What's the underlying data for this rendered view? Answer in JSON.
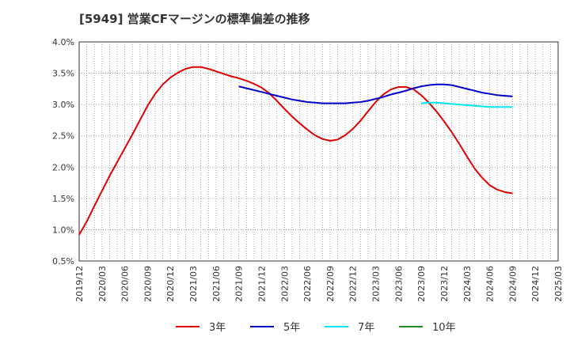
{
  "chart_data": {
    "type": "line",
    "title": "[5949]  営業CFマージンの標準偏差の推移",
    "x_categories": [
      "2019/12",
      "2020/03",
      "2020/06",
      "2020/09",
      "2020/12",
      "2021/03",
      "2021/06",
      "2021/09",
      "2021/12",
      "2022/03",
      "2022/06",
      "2022/09",
      "2022/12",
      "2023/03",
      "2023/06",
      "2023/09",
      "2023/12",
      "2024/03",
      "2024/06",
      "2024/09",
      "2024/12",
      "2025/03"
    ],
    "y_ticks": [
      "0.5%",
      "1.0%",
      "1.5%",
      "2.0%",
      "2.5%",
      "3.0%",
      "3.5%",
      "4.0%"
    ],
    "ylim": [
      0.5,
      4.0
    ],
    "grid": true,
    "legend_position": "bottom",
    "series": [
      {
        "name": "3年",
        "color": "#e00000",
        "x": [
          "2019/12",
          "2020/01",
          "2020/02",
          "2020/03",
          "2020/04",
          "2020/05",
          "2020/06",
          "2020/07",
          "2020/08",
          "2020/09",
          "2020/10",
          "2020/11",
          "2020/12",
          "2021/01",
          "2021/02",
          "2021/03",
          "2021/04",
          "2021/05",
          "2021/06",
          "2021/07",
          "2021/08",
          "2021/09",
          "2021/10",
          "2021/11",
          "2021/12",
          "2022/01",
          "2022/02",
          "2022/03",
          "2022/04",
          "2022/05",
          "2022/06",
          "2022/07",
          "2022/08",
          "2022/09",
          "2022/10",
          "2022/11",
          "2022/12",
          "2023/01",
          "2023/02",
          "2023/03",
          "2023/04",
          "2023/05",
          "2023/06",
          "2023/07",
          "2023/08",
          "2023/09",
          "2023/10",
          "2023/11",
          "2023/12",
          "2024/01",
          "2024/02",
          "2024/03",
          "2024/04",
          "2024/05",
          "2024/06",
          "2024/07",
          "2024/08",
          "2024/09"
        ],
        "values": [
          0.92,
          1.13,
          1.38,
          1.62,
          1.86,
          2.08,
          2.3,
          2.52,
          2.75,
          2.98,
          3.17,
          3.32,
          3.43,
          3.51,
          3.57,
          3.6,
          3.6,
          3.57,
          3.53,
          3.49,
          3.45,
          3.42,
          3.38,
          3.33,
          3.27,
          3.18,
          3.06,
          2.93,
          2.81,
          2.7,
          2.6,
          2.51,
          2.45,
          2.42,
          2.44,
          2.51,
          2.61,
          2.74,
          2.89,
          3.04,
          3.16,
          3.24,
          3.28,
          3.28,
          3.24,
          3.15,
          3.03,
          2.89,
          2.73,
          2.56,
          2.37,
          2.17,
          1.98,
          1.83,
          1.71,
          1.64,
          1.6,
          1.58
        ]
      },
      {
        "name": "5年",
        "color": "#0000cc",
        "x": [
          "2021/09",
          "2021/10",
          "2021/11",
          "2021/12",
          "2022/01",
          "2022/02",
          "2022/03",
          "2022/04",
          "2022/05",
          "2022/06",
          "2022/07",
          "2022/08",
          "2022/09",
          "2022/10",
          "2022/11",
          "2022/12",
          "2023/01",
          "2023/02",
          "2023/03",
          "2023/04",
          "2023/05",
          "2023/06",
          "2023/07",
          "2023/08",
          "2023/09",
          "2023/10",
          "2023/11",
          "2023/12",
          "2024/01",
          "2024/02",
          "2024/03",
          "2024/04",
          "2024/05",
          "2024/06",
          "2024/07",
          "2024/08",
          "2024/09"
        ],
        "values": [
          3.29,
          3.26,
          3.23,
          3.2,
          3.17,
          3.14,
          3.11,
          3.08,
          3.06,
          3.04,
          3.03,
          3.02,
          3.02,
          3.02,
          3.02,
          3.03,
          3.04,
          3.06,
          3.09,
          3.12,
          3.16,
          3.19,
          3.22,
          3.26,
          3.29,
          3.31,
          3.32,
          3.32,
          3.31,
          3.28,
          3.25,
          3.22,
          3.19,
          3.17,
          3.15,
          3.14,
          3.13
        ]
      },
      {
        "name": "7年",
        "color": "#00e5ee",
        "x": [
          "2023/09",
          "2023/10",
          "2023/11",
          "2023/12",
          "2024/01",
          "2024/02",
          "2024/03",
          "2024/04",
          "2024/05",
          "2024/06",
          "2024/07",
          "2024/08",
          "2024/09"
        ],
        "values": [
          3.02,
          3.03,
          3.03,
          3.02,
          3.01,
          3.0,
          2.99,
          2.98,
          2.97,
          2.96,
          2.96,
          2.96,
          2.96
        ]
      },
      {
        "name": "10年",
        "color": "#228b22",
        "x": [],
        "values": []
      }
    ]
  }
}
